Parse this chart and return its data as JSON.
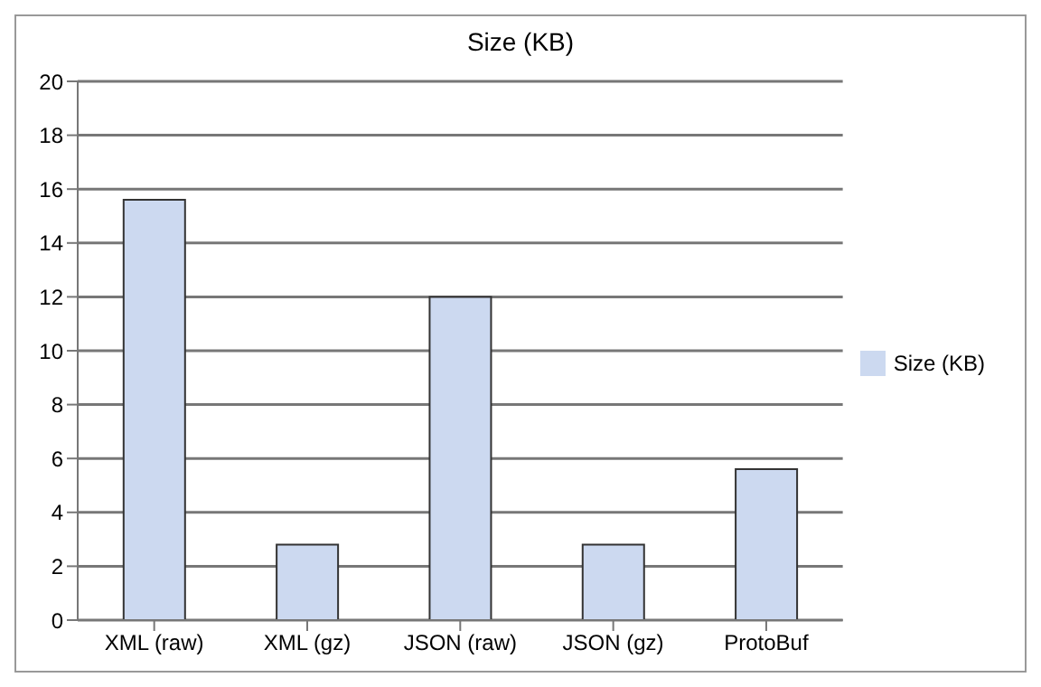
{
  "chart_data": {
    "type": "bar",
    "title": "Size (KB)",
    "categories": [
      "XML (raw)",
      "XML (gz)",
      "JSON (raw)",
      "JSON (gz)",
      "ProtoBuf"
    ],
    "series": [
      {
        "name": "Size (KB)",
        "color": "#ccd9f0",
        "values": [
          15.6,
          2.8,
          12.0,
          2.8,
          5.6
        ]
      }
    ],
    "ylim": [
      0,
      20
    ],
    "yticks": [
      0,
      2,
      4,
      6,
      8,
      10,
      12,
      14,
      16,
      18,
      20
    ],
    "grid": "y",
    "legend": "right"
  }
}
